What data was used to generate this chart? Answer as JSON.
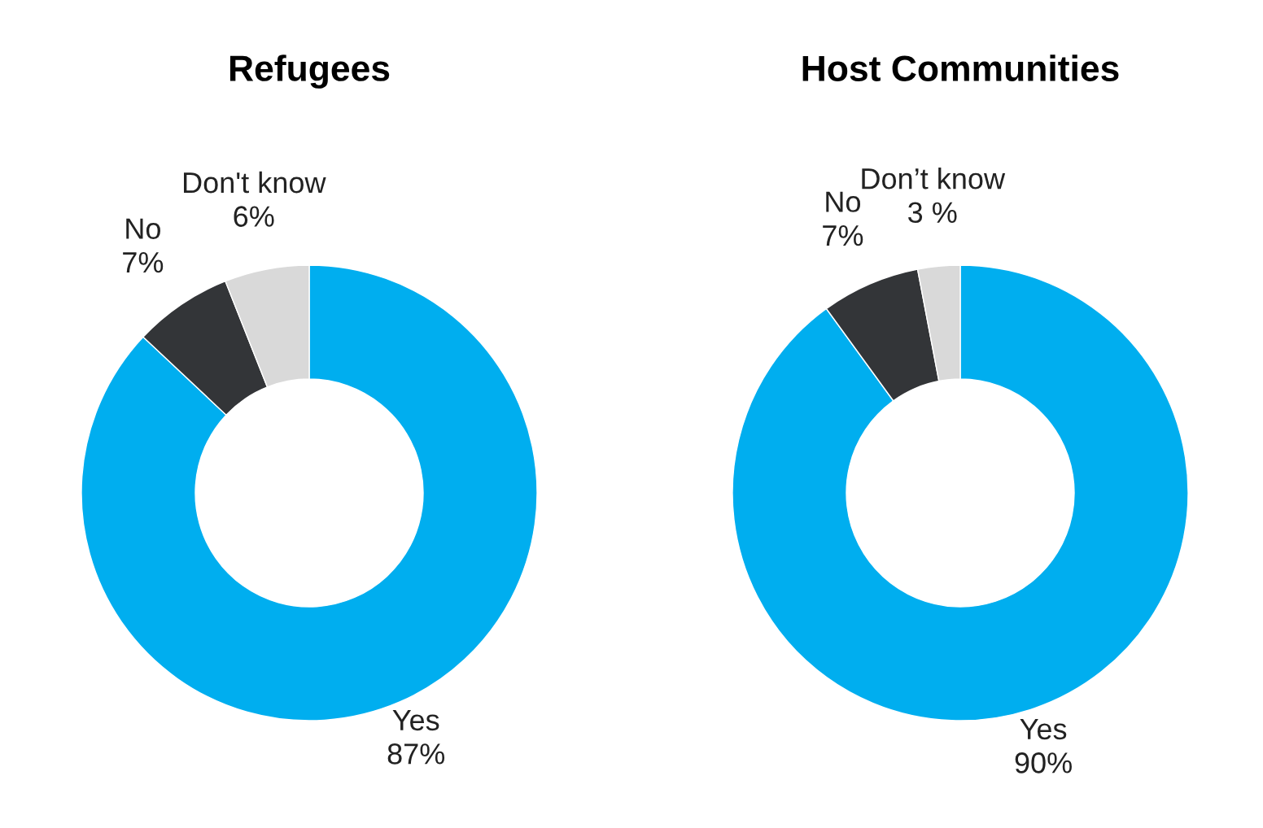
{
  "chart_data": [
    {
      "type": "donut",
      "title": "Refugees",
      "categories": [
        "Yes",
        "No",
        "Don't know"
      ],
      "values": [
        87,
        7,
        6
      ],
      "colors": [
        "#00aeef",
        "#333538",
        "#d9d9d9"
      ],
      "value_labels": [
        "87%",
        "7%",
        "6%"
      ]
    },
    {
      "type": "donut",
      "title": "Host Communities",
      "categories": [
        "Yes",
        "No",
        "Don’t know"
      ],
      "values": [
        90,
        7,
        3
      ],
      "colors": [
        "#00aeef",
        "#333538",
        "#d9d9d9"
      ],
      "value_labels": [
        "90%",
        "7%",
        "3 %"
      ]
    }
  ]
}
